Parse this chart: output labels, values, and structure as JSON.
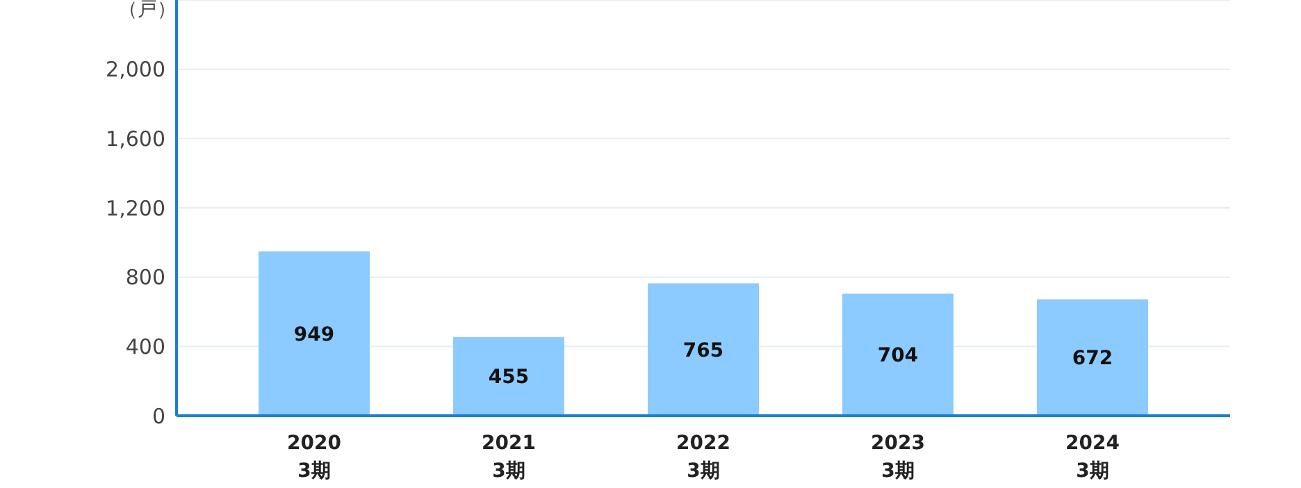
{
  "chart_data": {
    "type": "bar",
    "ylabel": "（戸）",
    "categories": [
      "2020\n3期",
      "2021\n3期",
      "2022\n3期",
      "2023\n3期",
      "2024\n3期"
    ],
    "series": [
      {
        "color": "#8ccbff",
        "values": [
          949,
          455,
          765,
          704,
          672
        ]
      }
    ],
    "ylim": [
      0,
      2400
    ],
    "yticks": [
      0,
      400,
      800,
      {
        "value": 1200,
        "label": "1,200"
      },
      {
        "value": 1600,
        "label": "1,600"
      },
      {
        "value": 2000,
        "label": "2,000"
      }
    ],
    "grid": "y",
    "data_labels": true,
    "legend": false
  }
}
